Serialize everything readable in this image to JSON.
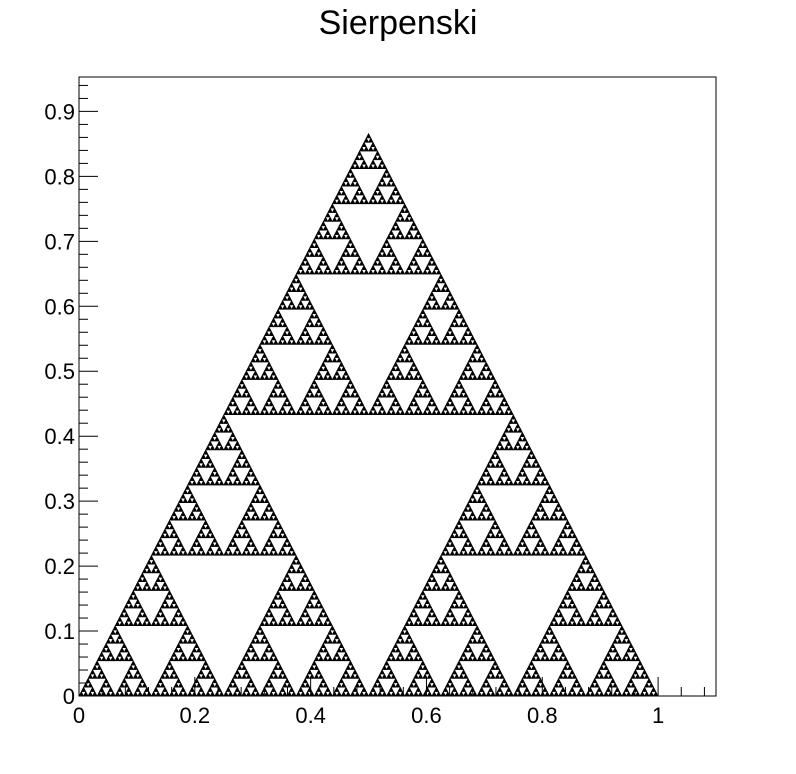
{
  "chart_data": {
    "type": "scatter",
    "title": "Sierpenski",
    "xlabel": "",
    "ylabel": "",
    "xlim": [
      0,
      1.1
    ],
    "ylim": [
      0,
      0.953
    ],
    "grid": false,
    "legend": "none",
    "series": [
      {
        "shape": "sierpinski-triangle",
        "vertices": [
          [
            0,
            0
          ],
          [
            1,
            0
          ],
          [
            0.5,
            0.866
          ]
        ],
        "recursion_depth": 7,
        "color": "#000000"
      }
    ],
    "x_ticks": [
      {
        "value": 0,
        "label": "0"
      },
      {
        "value": 0.2,
        "label": "0.2"
      },
      {
        "value": 0.4,
        "label": "0.4"
      },
      {
        "value": 0.6,
        "label": "0.6"
      },
      {
        "value": 0.8,
        "label": "0.8"
      },
      {
        "value": 1,
        "label": "1"
      }
    ],
    "y_ticks": [
      {
        "value": 0,
        "label": "0"
      },
      {
        "value": 0.1,
        "label": "0.1"
      },
      {
        "value": 0.2,
        "label": "0.2"
      },
      {
        "value": 0.3,
        "label": "0.3"
      },
      {
        "value": 0.4,
        "label": "0.4"
      },
      {
        "value": 0.5,
        "label": "0.5"
      },
      {
        "value": 0.6,
        "label": "0.6"
      },
      {
        "value": 0.7,
        "label": "0.7"
      },
      {
        "value": 0.8,
        "label": "0.8"
      },
      {
        "value": 0.9,
        "label": "0.9"
      }
    ]
  }
}
